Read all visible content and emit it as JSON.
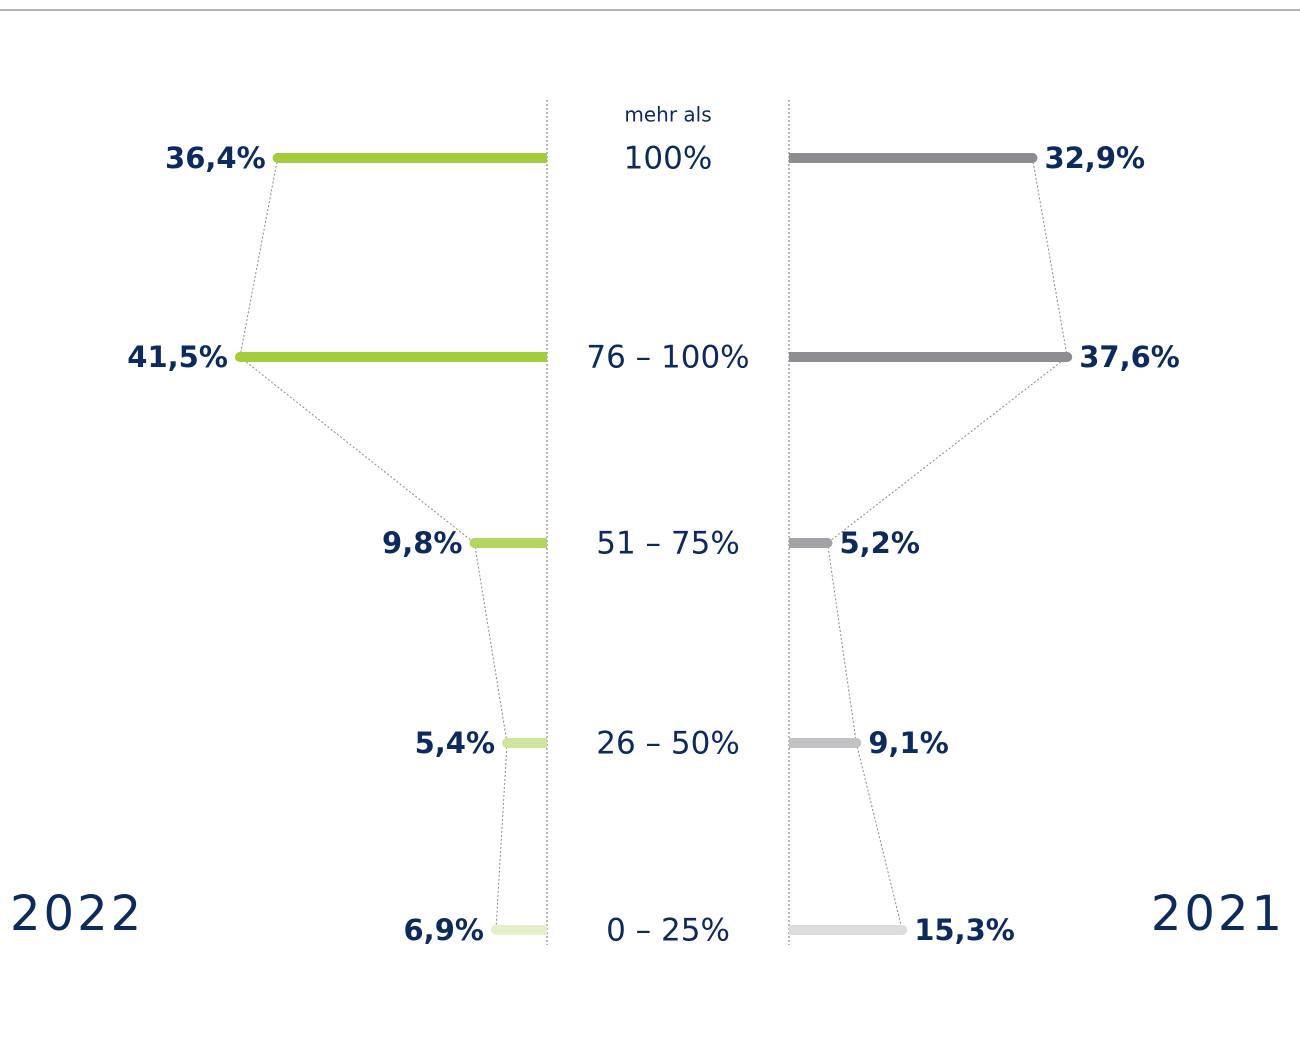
{
  "chart_data": {
    "type": "butterfly",
    "categories": [
      "100%",
      "76 – 100%",
      "51 – 75%",
      "26 – 50%",
      "0 – 25%"
    ],
    "first_category_prefix": "mehr als",
    "series": [
      {
        "name": "2022",
        "side": "left",
        "colors": [
          "#a4cc3c",
          "#a4cc3c",
          "#b3d662",
          "#cfe59e",
          "#e4f0cb"
        ],
        "values": [
          36.4,
          41.5,
          9.8,
          5.4,
          6.9
        ],
        "value_labels": [
          "36,4%",
          "41,5%",
          "9,8%",
          "5,4%",
          "6,9%"
        ]
      },
      {
        "name": "2021",
        "side": "right",
        "colors": [
          "#8c8c91",
          "#8c8c91",
          "#a3a3a7",
          "#c2c2c5",
          "#dcdcde"
        ],
        "values": [
          32.9,
          37.6,
          5.2,
          9.1,
          15.3
        ],
        "value_labels": [
          "32,9%",
          "37,6%",
          "5,2%",
          "9,1%",
          "15,3%"
        ]
      }
    ]
  }
}
